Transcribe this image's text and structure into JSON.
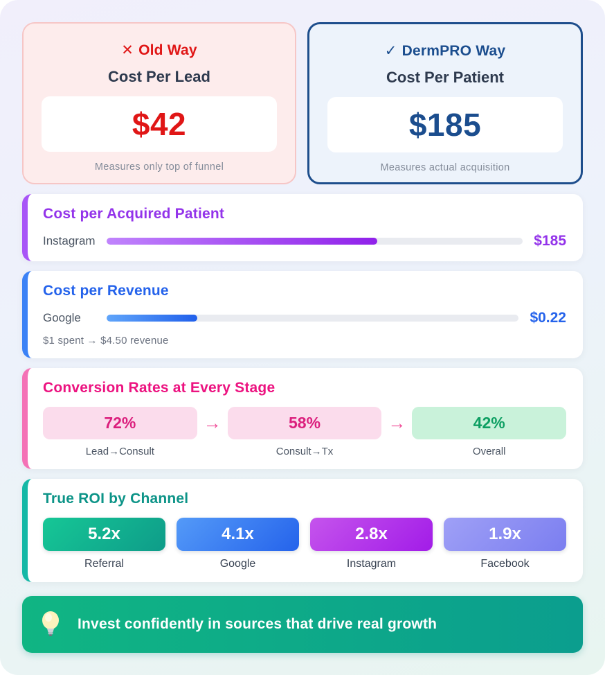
{
  "compare": {
    "old": {
      "icon": "✕",
      "title": "Old Way",
      "metric": "Cost Per Lead",
      "value": "$42",
      "caption": "Measures only top of funnel",
      "accent_color": "#e01616"
    },
    "dermpro": {
      "icon": "✓",
      "title": "DermPRO Way",
      "metric": "Cost Per Patient",
      "value": "$185",
      "caption": "Measures actual acquisition",
      "accent_color": "#1b4d8e"
    }
  },
  "cost_per_acquired_patient": {
    "title": "Cost per Acquired Patient",
    "channel": "Instagram",
    "value": "$185",
    "fill_pct": 65,
    "accent_color": "#9333ea"
  },
  "cost_per_revenue": {
    "title": "Cost per Revenue",
    "channel": "Google",
    "value": "$0.22",
    "note": "$1 spent → $4.50 revenue",
    "fill_pct": 22,
    "accent_color": "#2563eb"
  },
  "conversion": {
    "title": "Conversion Rates at Every Stage",
    "arrow": "→",
    "accent_color": "#ec1380",
    "stage_pink_bg": "#fbdcec",
    "stage_green_bg": "#c9f2da",
    "stages": [
      {
        "value": "72%",
        "label": "Lead→Consult",
        "variant": "pink"
      },
      {
        "value": "58%",
        "label": "Consult→Tx",
        "variant": "pink"
      },
      {
        "value": "42%",
        "label": "Overall",
        "variant": "green"
      }
    ]
  },
  "roi": {
    "title": "True ROI by Channel",
    "accent_color": "#0d9488",
    "channels": [
      {
        "value": "5.2x",
        "label": "Referral"
      },
      {
        "value": "4.1x",
        "label": "Google"
      },
      {
        "value": "2.8x",
        "label": "Instagram"
      },
      {
        "value": "1.9x",
        "label": "Facebook"
      }
    ]
  },
  "banner": {
    "icon": "lightbulb",
    "text": "Invest confidently in sources that drive real growth",
    "background_colors": [
      "#10b583",
      "#0b9e8e"
    ]
  },
  "chart_data": [
    {
      "type": "bar",
      "title": "Old Way vs DermPRO Way",
      "categories": [
        "Cost Per Lead (Old Way)",
        "Cost Per Patient (DermPRO Way)"
      ],
      "values": [
        42,
        185
      ],
      "value_labels": [
        "$42",
        "$185"
      ],
      "annotations": [
        "Measures only top of funnel",
        "Measures actual acquisition"
      ]
    },
    {
      "type": "bar",
      "title": "Cost per Acquired Patient",
      "categories": [
        "Instagram"
      ],
      "values": [
        185
      ],
      "value_labels": [
        "$185"
      ],
      "bar_fill_fraction": 0.65
    },
    {
      "type": "bar",
      "title": "Cost per Revenue",
      "categories": [
        "Google"
      ],
      "values": [
        0.22
      ],
      "value_labels": [
        "$0.22"
      ],
      "annotations": [
        "$1 spent → $4.50 revenue"
      ],
      "bar_fill_fraction": 0.22
    },
    {
      "type": "bar",
      "title": "Conversion Rates at Every Stage",
      "categories": [
        "Lead→Consult",
        "Consult→Tx",
        "Overall"
      ],
      "values": [
        72,
        58,
        42
      ],
      "unit": "%"
    },
    {
      "type": "bar",
      "title": "True ROI by Channel",
      "categories": [
        "Referral",
        "Google",
        "Instagram",
        "Facebook"
      ],
      "values": [
        5.2,
        4.1,
        2.8,
        1.9
      ],
      "unit": "x"
    }
  ]
}
